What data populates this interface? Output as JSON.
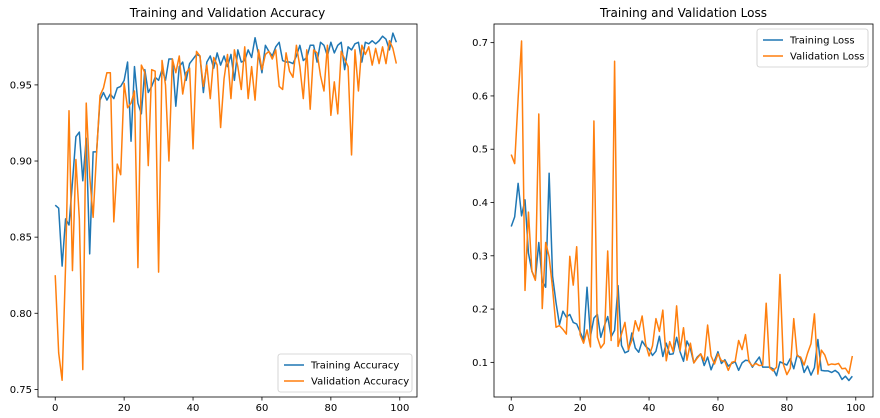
{
  "chart_data": [
    {
      "type": "line",
      "title": "Training and Validation Accuracy",
      "xlabel": "",
      "ylabel": "",
      "xlim": [
        -5,
        105
      ],
      "ylim": [
        0.745,
        0.99
      ],
      "xticks": [
        0,
        20,
        40,
        60,
        80,
        100
      ],
      "yticks": [
        0.75,
        0.8,
        0.85,
        0.9,
        0.95
      ],
      "ytick_labels": [
        "0.75",
        "0.80",
        "0.85",
        "0.90",
        "0.95"
      ],
      "legend_position": "lower right",
      "series": [
        {
          "name": "Training Accuracy",
          "color": "#1f77b4",
          "values": [
            0.871,
            0.869,
            0.831,
            0.862,
            0.858,
            0.886,
            0.916,
            0.919,
            0.887,
            0.915,
            0.839,
            0.906,
            0.906,
            0.94,
            0.945,
            0.94,
            0.944,
            0.941,
            0.948,
            0.949,
            0.953,
            0.965,
            0.913,
            0.962,
            0.938,
            0.931,
            0.96,
            0.945,
            0.949,
            0.955,
            0.953,
            0.96,
            0.953,
            0.967,
            0.967,
            0.936,
            0.962,
            0.965,
            0.953,
            0.964,
            0.967,
            0.97,
            0.969,
            0.945,
            0.965,
            0.969,
            0.961,
            0.971,
            0.963,
            0.969,
            0.962,
            0.97,
            0.953,
            0.973,
            0.965,
            0.966,
            0.973,
            0.968,
            0.981,
            0.97,
            0.958,
            0.976,
            0.972,
            0.969,
            0.975,
            0.978,
            0.966,
            0.965,
            0.965,
            0.964,
            0.969,
            0.976,
            0.966,
            0.968,
            0.976,
            0.976,
            0.965,
            0.978,
            0.976,
            0.969,
            0.978,
            0.971,
            0.976,
            0.978,
            0.96,
            0.975,
            0.973,
            0.977,
            0.978,
            0.965,
            0.978,
            0.977,
            0.979,
            0.977,
            0.979,
            0.982,
            0.98,
            0.973,
            0.984,
            0.978
          ]
        },
        {
          "name": "Validation Accuracy",
          "color": "#ff7f0e",
          "values": [
            0.825,
            0.774,
            0.756,
            0.831,
            0.933,
            0.828,
            0.901,
            0.862,
            0.763,
            0.938,
            0.89,
            0.863,
            0.905,
            0.943,
            0.948,
            0.958,
            0.958,
            0.86,
            0.898,
            0.891,
            0.951,
            0.935,
            0.938,
            0.946,
            0.83,
            0.963,
            0.958,
            0.897,
            0.96,
            0.959,
            0.827,
            0.966,
            0.95,
            0.9,
            0.967,
            0.958,
            0.969,
            0.944,
            0.958,
            0.961,
            0.908,
            0.972,
            0.969,
            0.949,
            0.963,
            0.941,
            0.968,
            0.963,
            0.922,
            0.954,
            0.97,
            0.941,
            0.973,
            0.962,
            0.947,
            0.975,
            0.941,
            0.962,
            0.94,
            0.973,
            0.96,
            0.97,
            0.972,
            0.967,
            0.973,
            0.949,
            0.947,
            0.971,
            0.959,
            0.955,
            0.976,
            0.962,
            0.941,
            0.973,
            0.934,
            0.973,
            0.971,
            0.956,
            0.946,
            0.976,
            0.93,
            0.952,
            0.931,
            0.972,
            0.967,
            0.962,
            0.904,
            0.973,
            0.946,
            0.976,
            0.97,
            0.975,
            0.963,
            0.974,
            0.964,
            0.975,
            0.964,
            0.979,
            0.974,
            0.964
          ]
        }
      ]
    },
    {
      "type": "line",
      "title": "Training and Validation Loss",
      "xlabel": "",
      "ylabel": "",
      "xlim": [
        -5,
        105
      ],
      "ylim": [
        0.035,
        0.735
      ],
      "xticks": [
        0,
        20,
        40,
        60,
        80,
        100
      ],
      "yticks": [
        0.1,
        0.2,
        0.3,
        0.4,
        0.5,
        0.6,
        0.7
      ],
      "ytick_labels": [
        "0.1",
        "0.2",
        "0.3",
        "0.4",
        "0.5",
        "0.6",
        "0.7"
      ],
      "legend_position": "upper right",
      "series": [
        {
          "name": "Training Loss",
          "color": "#1f77b4",
          "values": [
            0.355,
            0.373,
            0.436,
            0.375,
            0.405,
            0.305,
            0.271,
            0.256,
            0.325,
            0.253,
            0.241,
            0.455,
            0.262,
            0.212,
            0.171,
            0.196,
            0.185,
            0.19,
            0.175,
            0.172,
            0.157,
            0.142,
            0.241,
            0.149,
            0.183,
            0.19,
            0.147,
            0.168,
            0.186,
            0.148,
            0.16,
            0.244,
            0.132,
            0.118,
            0.121,
            0.155,
            0.127,
            0.119,
            0.14,
            0.13,
            0.125,
            0.113,
            0.121,
            0.149,
            0.111,
            0.136,
            0.115,
            0.116,
            0.147,
            0.12,
            0.102,
            0.14,
            0.126,
            0.099,
            0.11,
            0.116,
            0.094,
            0.11,
            0.086,
            0.103,
            0.12,
            0.098,
            0.105,
            0.093,
            0.098,
            0.101,
            0.085,
            0.099,
            0.104,
            0.103,
            0.091,
            0.101,
            0.11,
            0.091,
            0.091,
            0.091,
            0.088,
            0.075,
            0.101,
            0.098,
            0.095,
            0.107,
            0.088,
            0.114,
            0.107,
            0.081,
            0.093,
            0.076,
            0.09,
            0.143,
            0.085,
            0.084,
            0.084,
            0.081,
            0.085,
            0.08,
            0.068,
            0.074,
            0.066,
            0.074
          ]
        },
        {
          "name": "Validation Loss",
          "color": "#ff7f0e",
          "values": [
            0.49,
            0.473,
            0.595,
            0.703,
            0.235,
            0.382,
            0.271,
            0.254,
            0.566,
            0.201,
            0.325,
            0.298,
            0.239,
            0.166,
            0.169,
            0.162,
            0.153,
            0.299,
            0.245,
            0.317,
            0.152,
            0.136,
            0.161,
            0.129,
            0.553,
            0.147,
            0.127,
            0.136,
            0.309,
            0.141,
            0.665,
            0.13,
            0.153,
            0.175,
            0.124,
            0.141,
            0.178,
            0.159,
            0.187,
            0.135,
            0.112,
            0.131,
            0.182,
            0.158,
            0.198,
            0.103,
            0.139,
            0.12,
            0.206,
            0.122,
            0.165,
            0.104,
            0.136,
            0.099,
            0.108,
            0.116,
            0.103,
            0.17,
            0.112,
            0.097,
            0.116,
            0.103,
            0.102,
            0.085,
            0.1,
            0.102,
            0.141,
            0.124,
            0.152,
            0.101,
            0.093,
            0.098,
            0.094,
            0.095,
            0.211,
            0.09,
            0.084,
            0.091,
            0.265,
            0.096,
            0.077,
            0.089,
            0.182,
            0.112,
            0.11,
            0.095,
            0.117,
            0.135,
            0.191,
            0.078,
            0.123,
            0.114,
            0.095,
            0.097,
            0.096,
            0.098,
            0.088,
            0.089,
            0.079,
            0.112
          ]
        }
      ]
    }
  ]
}
